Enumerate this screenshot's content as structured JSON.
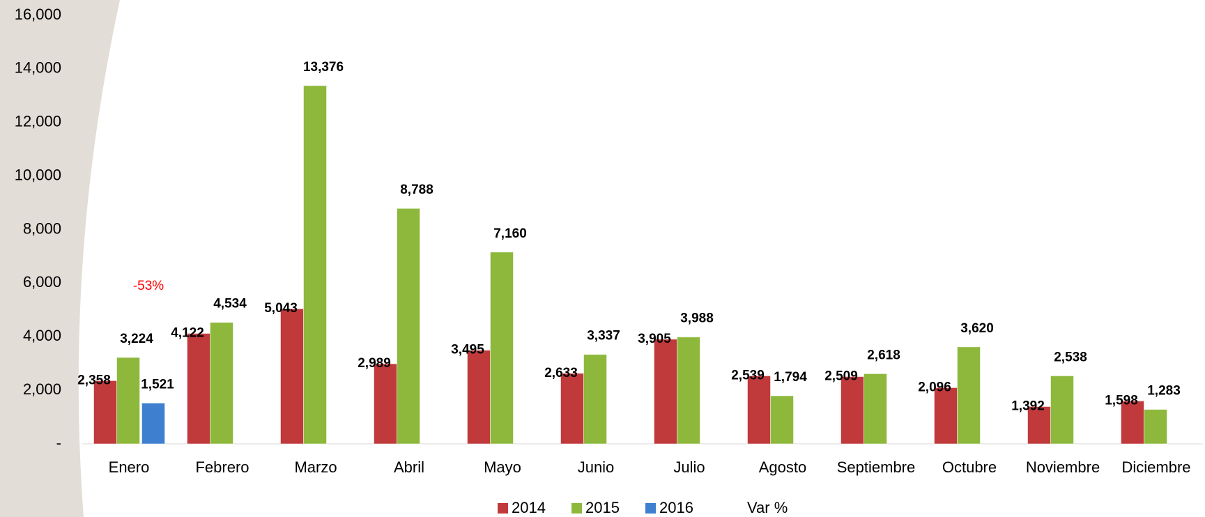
{
  "chart_data": {
    "type": "bar",
    "categories": [
      "Enero",
      "Febrero",
      "Marzo",
      "Abril",
      "Mayo",
      "Junio",
      "Julio",
      "Agosto",
      "Septiembre",
      "Octubre",
      "Noviembre",
      "Diciembre"
    ],
    "series": [
      {
        "name": "2014",
        "color": "#c0393b",
        "values": [
          2358,
          4122,
          5043,
          2989,
          3495,
          2633,
          3905,
          2539,
          2509,
          2096,
          1392,
          1598
        ],
        "value_labels": [
          "2,358",
          "4,122",
          "5,043",
          "2,989",
          "3,495",
          "2,633",
          "3,905",
          "2,539",
          "2,509",
          "2,096",
          "1,392",
          "1,598"
        ]
      },
      {
        "name": "2015",
        "color": "#8db83c",
        "values": [
          3224,
          4534,
          13376,
          8788,
          7160,
          3337,
          3988,
          1794,
          2618,
          3620,
          2538,
          1283
        ],
        "value_labels": [
          "3,224",
          "4,534",
          "13,376",
          "8,788",
          "7,160",
          "3,337",
          "3,988",
          "1,794",
          "2,618",
          "3,620",
          "2,538",
          "1,283"
        ]
      },
      {
        "name": "2016",
        "color": "#3f7fd0",
        "values": [
          1521,
          null,
          null,
          null,
          null,
          null,
          null,
          null,
          null,
          null,
          null,
          null
        ],
        "value_labels": [
          "1,521",
          null,
          null,
          null,
          null,
          null,
          null,
          null,
          null,
          null,
          null,
          null
        ]
      },
      {
        "name": "Var %",
        "color": "#ff0000",
        "values": [
          -53,
          null,
          null,
          null,
          null,
          null,
          null,
          null,
          null,
          null,
          null,
          null
        ],
        "value_labels": [
          "-53%",
          null,
          null,
          null,
          null,
          null,
          null,
          null,
          null,
          null,
          null,
          null
        ]
      }
    ],
    "ylim": [
      0,
      16000
    ],
    "yticks": [
      {
        "value": 0,
        "label": "-"
      },
      {
        "value": 2000,
        "label": "2,000"
      },
      {
        "value": 4000,
        "label": "4,000"
      },
      {
        "value": 6000,
        "label": "6,000"
      },
      {
        "value": 8000,
        "label": "8,000"
      },
      {
        "value": 10000,
        "label": "10,000"
      },
      {
        "value": 12000,
        "label": "12,000"
      },
      {
        "value": 14000,
        "label": "14,000"
      },
      {
        "value": 16000,
        "label": "16,000"
      }
    ],
    "grid": false,
    "legend": "bottom"
  }
}
